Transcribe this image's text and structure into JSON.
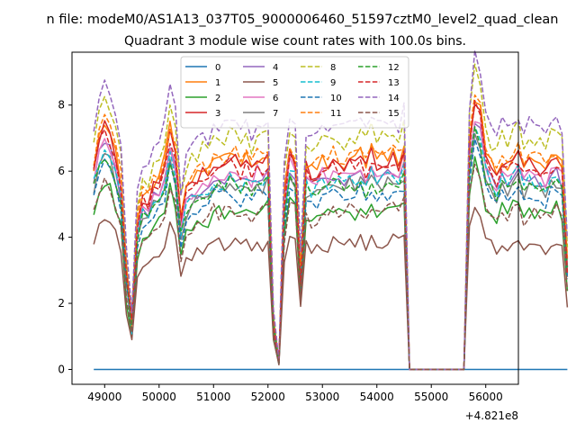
{
  "suptitle": "n file: modeM0/AS1A13_037T05_9000006460_51597cztM0_level2_quad_clean",
  "chart_data": {
    "type": "line",
    "title": "Quadrant 3 module wise count rates with 100.0s bins.",
    "xlabel": "",
    "ylabel": "",
    "x_offset_label": "+4.821e8",
    "xlim": [
      48400,
      56600
    ],
    "ylim": [
      -0.45,
      9.6
    ],
    "xticks": [
      49000,
      50000,
      51000,
      52000,
      53000,
      54000,
      55000,
      56000
    ],
    "xtick_labels": [
      "49000",
      "50000",
      "51000",
      "52000",
      "53000",
      "54000",
      "55000",
      "56000"
    ],
    "yticks": [
      0,
      2,
      4,
      6,
      8
    ],
    "ytick_labels": [
      "0",
      "2",
      "4",
      "6",
      "8"
    ],
    "grid": false,
    "legend_position": "top-center",
    "legend_columns": 4,
    "x_start": 48800,
    "x_step": 100,
    "base_profile": [
      5.4,
      6.2,
      6.5,
      6.3,
      5.8,
      5.0,
      2.6,
      1.2,
      4.0,
      4.6,
      4.5,
      4.9,
      5.1,
      5.5,
      6.4,
      5.8,
      4.0,
      4.7,
      5.0,
      5.1,
      5.3,
      5.2,
      5.6,
      5.5,
      5.5,
      5.7,
      5.6,
      5.4,
      5.6,
      5.3,
      5.6,
      5.5,
      5.7,
      1.3,
      0.2,
      4.6,
      5.8,
      5.6,
      2.5,
      5.4,
      5.2,
      5.3,
      5.5,
      5.4,
      5.6,
      5.5,
      5.4,
      5.6,
      5.5,
      5.7,
      5.4,
      5.8,
      5.5,
      5.6,
      5.6,
      5.7,
      5.5,
      5.9,
      0,
      0,
      0,
      0,
      0,
      0,
      0,
      0,
      0,
      0,
      0,
      6.0,
      7.2,
      6.8,
      5.8,
      5.4,
      5.2,
      5.6,
      5.4,
      5.7,
      5.8,
      5.3,
      5.6,
      5.5,
      5.4,
      5.3,
      5.6,
      5.7,
      5.4,
      2.8
    ],
    "series": [
      {
        "name": "0",
        "color": "#1f77b4",
        "dash": "solid",
        "scale": 0,
        "offset": 0,
        "seed": 0
      },
      {
        "name": "1",
        "color": "#ff7f0e",
        "dash": "solid",
        "scale": 1.13,
        "offset": 0.1,
        "seed": 1
      },
      {
        "name": "2",
        "color": "#2ca02c",
        "dash": "solid",
        "scale": 0.88,
        "offset": -0.1,
        "seed": 2
      },
      {
        "name": "3",
        "color": "#d62728",
        "dash": "solid",
        "scale": 1.12,
        "offset": 0.05,
        "seed": 3
      },
      {
        "name": "4",
        "color": "#9467bd",
        "dash": "solid",
        "scale": 1.05,
        "offset": 0.0,
        "seed": 4
      },
      {
        "name": "5",
        "color": "#8c564b",
        "dash": "solid",
        "scale": 0.7,
        "offset": -0.05,
        "seed": 5
      },
      {
        "name": "6",
        "color": "#e377c2",
        "dash": "solid",
        "scale": 1.07,
        "offset": 0.0,
        "seed": 6
      },
      {
        "name": "7",
        "color": "#7f7f7f",
        "dash": "solid",
        "scale": 1.0,
        "offset": 0.0,
        "seed": 7
      },
      {
        "name": "8",
        "color": "#bcbd22",
        "dash": "dashed",
        "scale": 1.25,
        "offset": 0.1,
        "seed": 8
      },
      {
        "name": "9",
        "color": "#17becf",
        "dash": "dashed",
        "scale": 1.03,
        "offset": 0.0,
        "seed": 9
      },
      {
        "name": "10",
        "color": "#1f77b4",
        "dash": "dashed",
        "scale": 0.95,
        "offset": 0.0,
        "seed": 10
      },
      {
        "name": "11",
        "color": "#ff7f0e",
        "dash": "dashed",
        "scale": 1.15,
        "offset": 0.1,
        "seed": 11
      },
      {
        "name": "12",
        "color": "#2ca02c",
        "dash": "dashed",
        "scale": 1.0,
        "offset": 0.0,
        "seed": 12
      },
      {
        "name": "13",
        "color": "#d62728",
        "dash": "dashed",
        "scale": 1.1,
        "offset": 0.0,
        "seed": 13
      },
      {
        "name": "14",
        "color": "#9467bd",
        "dash": "dashed",
        "scale": 1.32,
        "offset": 0.1,
        "seed": 14
      },
      {
        "name": "15",
        "color": "#8c564b",
        "dash": "dashed",
        "scale": 0.86,
        "offset": 0.0,
        "seed": 15
      }
    ]
  }
}
